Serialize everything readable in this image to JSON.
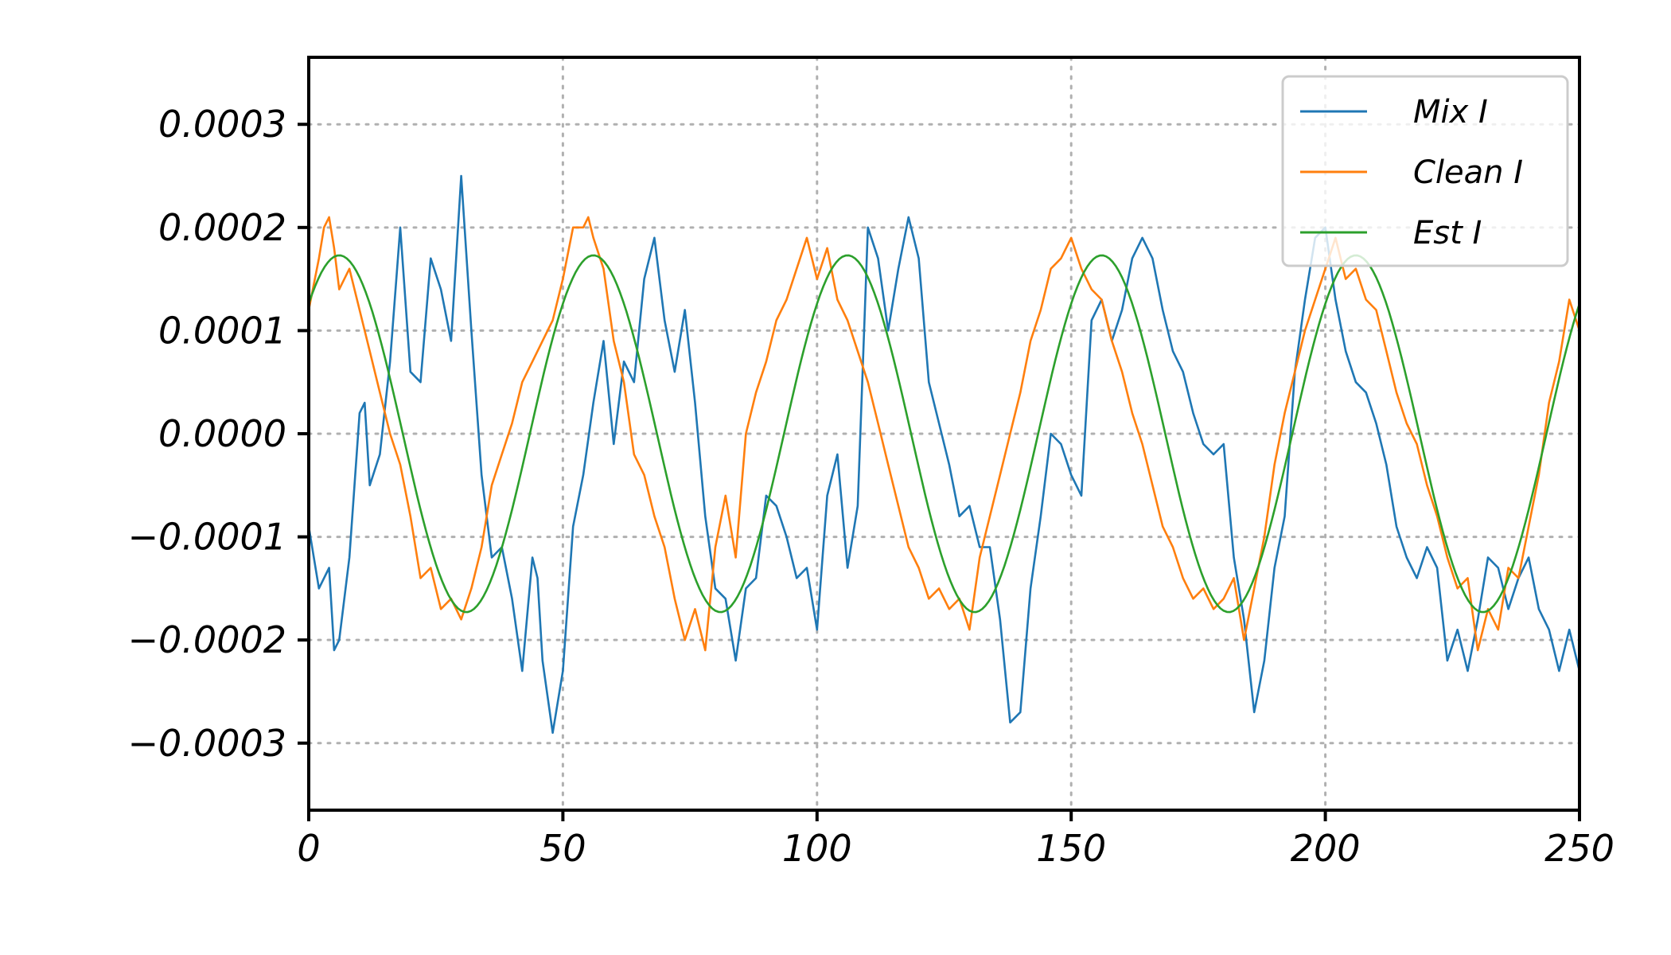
{
  "chart_data": {
    "type": "line",
    "title": "",
    "xlabel": "",
    "ylabel": "",
    "xlim": [
      0,
      250
    ],
    "ylim": [
      -0.000365,
      0.000365
    ],
    "xticks": [
      0,
      50,
      100,
      150,
      200,
      250
    ],
    "xtick_labels": [
      "0",
      "50",
      "100",
      "150",
      "200",
      "250"
    ],
    "yticks": [
      -0.0003,
      -0.0002,
      -0.0001,
      0.0,
      0.0001,
      0.0002,
      0.0003
    ],
    "ytick_labels": [
      "−0.0003",
      "−0.0002",
      "−0.0001",
      "0.0000",
      "0.0001",
      "0.0002",
      "0.0003"
    ],
    "grid": true,
    "legend_position": "top-right",
    "series": [
      {
        "name": "Mix I",
        "color": "#1f77b4",
        "x": [
          0,
          2,
          4,
          5,
          6,
          8,
          10,
          11,
          12,
          14,
          16,
          18,
          20,
          22,
          24,
          26,
          28,
          30,
          32,
          34,
          36,
          38,
          40,
          42,
          44,
          45,
          46,
          48,
          50,
          52,
          54,
          56,
          58,
          60,
          62,
          64,
          66,
          68,
          70,
          72,
          74,
          76,
          78,
          80,
          82,
          84,
          86,
          88,
          90,
          92,
          94,
          96,
          98,
          100,
          102,
          104,
          106,
          108,
          110,
          112,
          114,
          116,
          118,
          120,
          122,
          124,
          126,
          128,
          130,
          132,
          134,
          136,
          138,
          140,
          142,
          144,
          146,
          148,
          150,
          152,
          154,
          156,
          158,
          160,
          162,
          164,
          166,
          168,
          170,
          172,
          174,
          176,
          178,
          180,
          182,
          184,
          186,
          188,
          190,
          192,
          194,
          196,
          198,
          200,
          202,
          204,
          206,
          208,
          210,
          212,
          214,
          216,
          218,
          220,
          222,
          224,
          226,
          228,
          230,
          232,
          234,
          236,
          238,
          240,
          242,
          244,
          246,
          248,
          250
        ],
        "y": [
          -9e-05,
          -0.00015,
          -0.00013,
          -0.00021,
          -0.0002,
          -0.00012,
          2e-05,
          3e-05,
          -5e-05,
          -2e-05,
          7e-05,
          0.0002,
          6e-05,
          5e-05,
          0.00017,
          0.00014,
          9e-05,
          0.00025,
          0.0001,
          -4e-05,
          -0.00012,
          -0.00011,
          -0.00016,
          -0.00023,
          -0.00012,
          -0.00014,
          -0.00022,
          -0.00029,
          -0.00023,
          -9e-05,
          -4e-05,
          3e-05,
          9e-05,
          -1e-05,
          7e-05,
          5e-05,
          0.00015,
          0.00019,
          0.00011,
          6e-05,
          0.00012,
          3e-05,
          -8e-05,
          -0.00015,
          -0.00016,
          -0.00022,
          -0.00015,
          -0.00014,
          -6e-05,
          -7e-05,
          -0.0001,
          -0.00014,
          -0.00013,
          -0.00019,
          -6e-05,
          -2e-05,
          -0.00013,
          -7e-05,
          0.0002,
          0.00017,
          0.0001,
          0.00016,
          0.00021,
          0.00017,
          5e-05,
          1e-05,
          -3e-05,
          -8e-05,
          -7e-05,
          -0.00011,
          -0.00011,
          -0.00018,
          -0.00028,
          -0.00027,
          -0.00015,
          -8e-05,
          0.0,
          -1e-05,
          -4e-05,
          -6e-05,
          0.00011,
          0.00013,
          9e-05,
          0.00012,
          0.00017,
          0.00019,
          0.00017,
          0.00012,
          8e-05,
          6e-05,
          2e-05,
          -1e-05,
          -2e-05,
          -1e-05,
          -0.00012,
          -0.00018,
          -0.00027,
          -0.00022,
          -0.00013,
          -8e-05,
          6e-05,
          0.00013,
          0.00019,
          0.0002,
          0.00013,
          8e-05,
          5e-05,
          4e-05,
          1e-05,
          -3e-05,
          -9e-05,
          -0.00012,
          -0.00014,
          -0.00011,
          -0.00013,
          -0.00022,
          -0.00019,
          -0.00023,
          -0.00018,
          -0.00012,
          -0.00013,
          -0.00017,
          -0.00014,
          -0.00012,
          -0.00017,
          -0.00019,
          -0.00023,
          -0.00019,
          -0.00023
        ]
      },
      {
        "name": "Clean I",
        "color": "#ff7f0e",
        "x": [
          0,
          2,
          3,
          4,
          5,
          6,
          8,
          10,
          12,
          14,
          16,
          18,
          20,
          22,
          24,
          26,
          28,
          30,
          32,
          34,
          36,
          38,
          40,
          42,
          44,
          46,
          48,
          50,
          52,
          54,
          55,
          56,
          58,
          60,
          62,
          64,
          66,
          68,
          70,
          72,
          74,
          76,
          78,
          80,
          82,
          84,
          86,
          88,
          90,
          92,
          94,
          96,
          98,
          100,
          102,
          104,
          106,
          108,
          110,
          112,
          114,
          116,
          118,
          120,
          122,
          124,
          126,
          128,
          130,
          132,
          134,
          136,
          138,
          140,
          142,
          144,
          146,
          148,
          150,
          152,
          154,
          156,
          158,
          160,
          162,
          164,
          166,
          168,
          170,
          172,
          174,
          176,
          178,
          180,
          182,
          184,
          186,
          188,
          190,
          192,
          194,
          196,
          198,
          200,
          202,
          204,
          206,
          208,
          210,
          212,
          214,
          216,
          218,
          220,
          222,
          224,
          226,
          228,
          230,
          232,
          234,
          236,
          238,
          240,
          242,
          244,
          246,
          248,
          250
        ],
        "y": [
          0.00012,
          0.00017,
          0.0002,
          0.00021,
          0.00018,
          0.00014,
          0.00016,
          0.00012,
          8e-05,
          4e-05,
          0.0,
          -3e-05,
          -8e-05,
          -0.00014,
          -0.00013,
          -0.00017,
          -0.00016,
          -0.00018,
          -0.00015,
          -0.00011,
          -5e-05,
          -2e-05,
          1e-05,
          5e-05,
          7e-05,
          9e-05,
          0.00011,
          0.00015,
          0.0002,
          0.0002,
          0.00021,
          0.00019,
          0.00016,
          9e-05,
          5e-05,
          -2e-05,
          -4e-05,
          -8e-05,
          -0.00011,
          -0.00016,
          -0.0002,
          -0.00017,
          -0.00021,
          -0.00011,
          -6e-05,
          -0.00012,
          0.0,
          4e-05,
          7e-05,
          0.00011,
          0.00013,
          0.00016,
          0.00019,
          0.00015,
          0.00018,
          0.00013,
          0.00011,
          8e-05,
          5e-05,
          1e-05,
          -3e-05,
          -7e-05,
          -0.00011,
          -0.00013,
          -0.00016,
          -0.00015,
          -0.00017,
          -0.00016,
          -0.00019,
          -0.00012,
          -8e-05,
          -4e-05,
          0.0,
          4e-05,
          9e-05,
          0.00012,
          0.00016,
          0.00017,
          0.00019,
          0.00016,
          0.00014,
          0.00013,
          9e-05,
          6e-05,
          2e-05,
          -1e-05,
          -5e-05,
          -9e-05,
          -0.00011,
          -0.00014,
          -0.00016,
          -0.00015,
          -0.00017,
          -0.00016,
          -0.00014,
          -0.0002,
          -0.00015,
          -0.0001,
          -3e-05,
          2e-05,
          6e-05,
          0.0001,
          0.00013,
          0.00016,
          0.00019,
          0.00015,
          0.00016,
          0.00013,
          0.00012,
          8e-05,
          4e-05,
          1e-05,
          -1e-05,
          -5e-05,
          -8e-05,
          -0.00012,
          -0.00015,
          -0.00014,
          -0.00021,
          -0.00017,
          -0.00019,
          -0.00013,
          -0.00014,
          -9e-05,
          -4e-05,
          3e-05,
          7e-05,
          0.00013,
          0.0001
        ]
      },
      {
        "name": "Est I",
        "color": "#2ca02c",
        "function": "sine",
        "amplitude": 0.000173,
        "period": 50,
        "peak_at": 6,
        "x_range": [
          0,
          250
        ]
      }
    ]
  }
}
